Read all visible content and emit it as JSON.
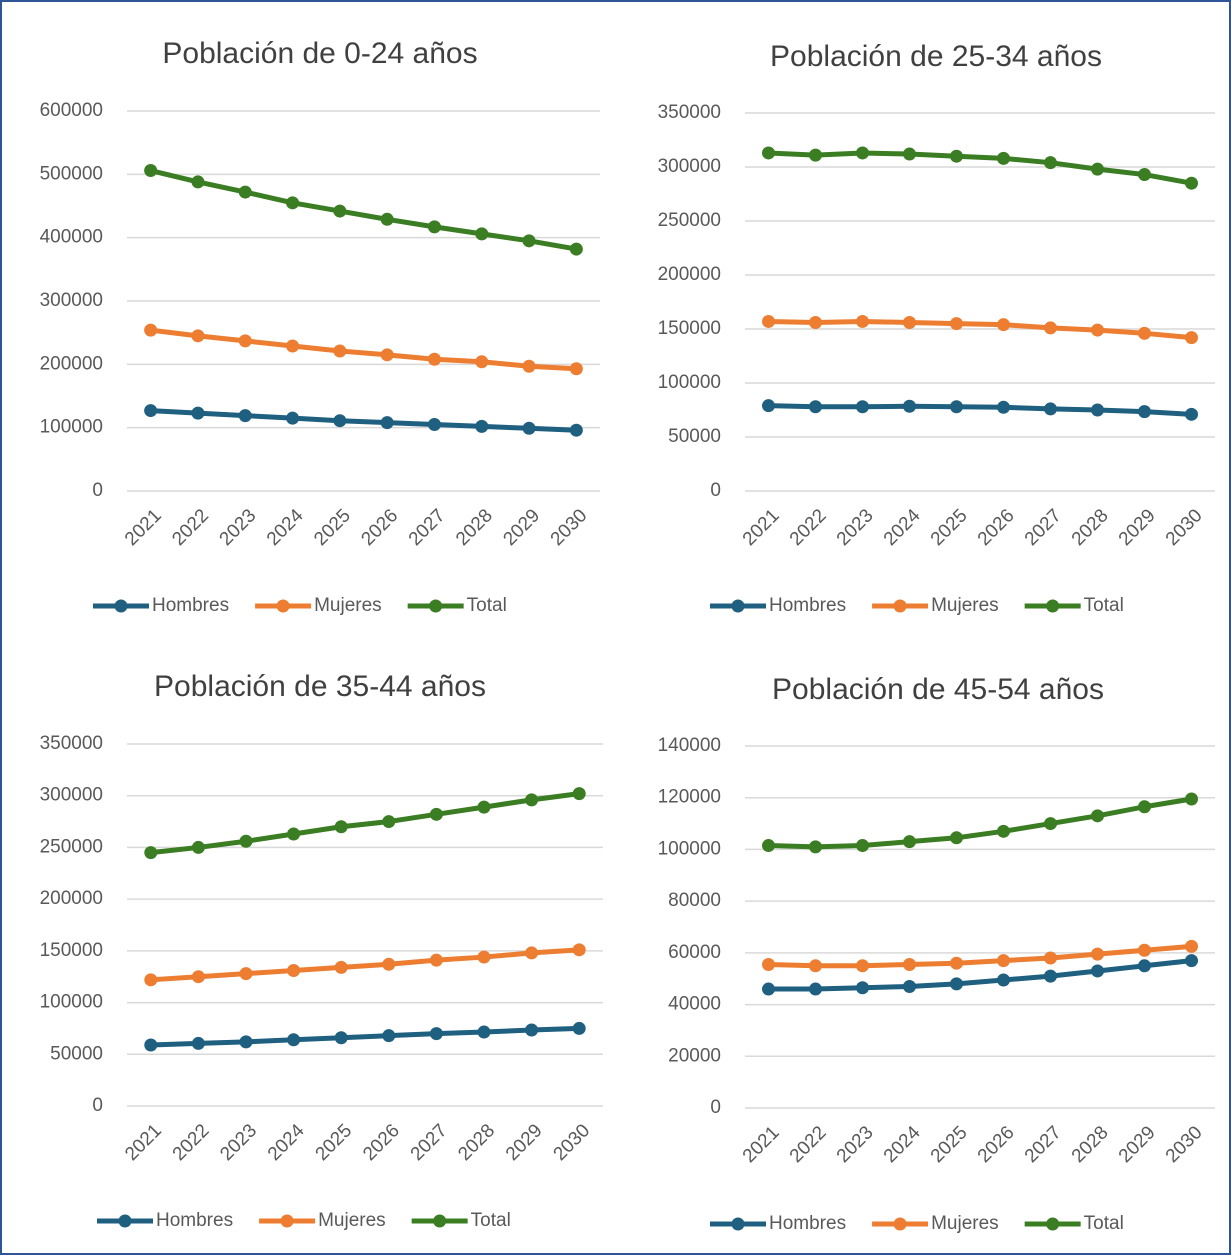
{
  "chart_data": [
    {
      "type": "line",
      "title": "Población de 0-24 años",
      "categories": [
        "2021",
        "2022",
        "2023",
        "2024",
        "2025",
        "2026",
        "2027",
        "2028",
        "2029",
        "2030"
      ],
      "ylim": [
        0,
        600000
      ],
      "yticks": [
        0,
        100000,
        200000,
        300000,
        400000,
        500000,
        600000
      ],
      "grid": true,
      "legend": "bottom",
      "series": [
        {
          "name": "Hombres",
          "color": "#1f5f80",
          "values": [
            127000,
            123000,
            119000,
            115000,
            111000,
            108000,
            105000,
            102000,
            99000,
            96000
          ]
        },
        {
          "name": "Mujeres",
          "color": "#ed7d31",
          "values": [
            254000,
            245000,
            237000,
            229000,
            221000,
            215000,
            208000,
            204000,
            197000,
            193000
          ]
        },
        {
          "name": "Total",
          "color": "#3a7d22",
          "values": [
            506000,
            488000,
            472000,
            455000,
            442000,
            429000,
            417000,
            406000,
            395000,
            382000
          ]
        }
      ]
    },
    {
      "type": "line",
      "title": "Población de 25-34 años",
      "categories": [
        "2021",
        "2022",
        "2023",
        "2024",
        "2025",
        "2026",
        "2027",
        "2028",
        "2029",
        "2030"
      ],
      "ylim": [
        0,
        350000
      ],
      "yticks": [
        0,
        50000,
        100000,
        150000,
        200000,
        250000,
        300000,
        350000
      ],
      "grid": true,
      "legend": "bottom",
      "series": [
        {
          "name": "Hombres",
          "color": "#1f5f80",
          "values": [
            79000,
            78000,
            78000,
            78500,
            78000,
            77500,
            76000,
            75000,
            73500,
            71000
          ]
        },
        {
          "name": "Mujeres",
          "color": "#ed7d31",
          "values": [
            157000,
            156000,
            157000,
            156000,
            155000,
            154000,
            151000,
            149000,
            146000,
            142000
          ]
        },
        {
          "name": "Total",
          "color": "#3a7d22",
          "values": [
            313000,
            311000,
            313000,
            312000,
            310000,
            308000,
            304000,
            298000,
            293000,
            285000
          ]
        }
      ]
    },
    {
      "type": "line",
      "title": "Población de 35-44 años",
      "categories": [
        "2021",
        "2022",
        "2023",
        "2024",
        "2025",
        "2026",
        "2027",
        "2028",
        "2029",
        "2030"
      ],
      "ylim": [
        0,
        350000
      ],
      "yticks": [
        0,
        50000,
        100000,
        150000,
        200000,
        250000,
        300000,
        350000
      ],
      "grid": true,
      "legend": "bottom",
      "series": [
        {
          "name": "Hombres",
          "color": "#1f5f80",
          "values": [
            59000,
            60500,
            62000,
            64000,
            66000,
            68000,
            70000,
            71500,
            73500,
            75000
          ]
        },
        {
          "name": "Mujeres",
          "color": "#ed7d31",
          "values": [
            122000,
            125000,
            128000,
            131000,
            134000,
            137000,
            141000,
            144000,
            148000,
            151000
          ]
        },
        {
          "name": "Total",
          "color": "#3a7d22",
          "values": [
            245000,
            250000,
            256000,
            263000,
            270000,
            275000,
            282000,
            289000,
            296000,
            302000
          ]
        }
      ]
    },
    {
      "type": "line",
      "title": "Población de 45-54 años",
      "categories": [
        "2021",
        "2022",
        "2023",
        "2024",
        "2025",
        "2026",
        "2027",
        "2028",
        "2029",
        "2030"
      ],
      "ylim": [
        0,
        140000
      ],
      "yticks": [
        0,
        20000,
        40000,
        60000,
        80000,
        100000,
        120000,
        140000
      ],
      "grid": true,
      "legend": "bottom",
      "series": [
        {
          "name": "Hombres",
          "color": "#1f5f80",
          "values": [
            46000,
            46000,
            46500,
            47000,
            48000,
            49500,
            51000,
            53000,
            55000,
            57000
          ]
        },
        {
          "name": "Mujeres",
          "color": "#ed7d31",
          "values": [
            55500,
            55000,
            55000,
            55500,
            56000,
            57000,
            58000,
            59500,
            61000,
            62500
          ]
        },
        {
          "name": "Total",
          "color": "#3a7d22",
          "values": [
            101500,
            101000,
            101500,
            103000,
            104500,
            107000,
            110000,
            113000,
            116500,
            119500
          ]
        }
      ]
    }
  ]
}
